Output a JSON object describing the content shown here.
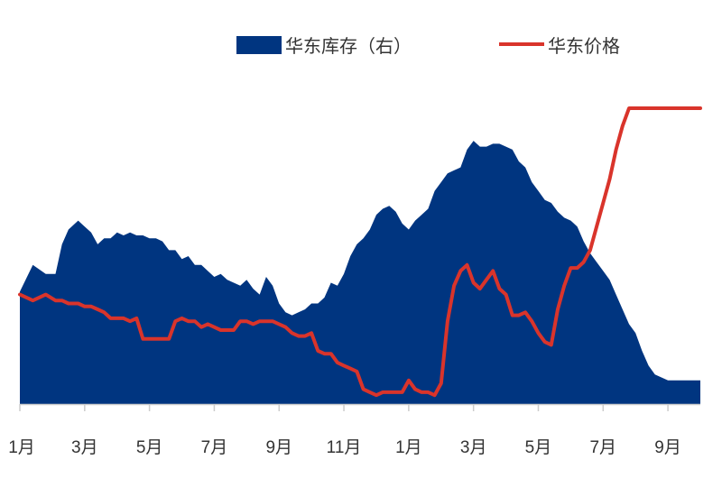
{
  "chart_data": {
    "type": "area+line",
    "title": "",
    "xlabel": "",
    "ylabel": "",
    "grid": false,
    "legend_position": "top-right",
    "x_tick_labels": [
      "1月",
      "3月",
      "5月",
      "7月",
      "9月",
      "11月",
      "1月",
      "3月",
      "5月",
      "7月",
      "9月"
    ],
    "x_range": [
      0,
      21
    ],
    "y_range": [
      0,
      100
    ],
    "series": [
      {
        "name": "华东库存（右）",
        "type": "area",
        "color": "#003580",
        "x": [
          0,
          0.4,
          0.8,
          1.1,
          1.3,
          1.5,
          1.8,
          2.0,
          2.2,
          2.4,
          2.6,
          2.8,
          3.0,
          3.2,
          3.4,
          3.6,
          3.8,
          4.0,
          4.2,
          4.4,
          4.6,
          4.8,
          5.0,
          5.2,
          5.4,
          5.6,
          5.8,
          6.0,
          6.2,
          6.4,
          6.6,
          6.8,
          7.0,
          7.2,
          7.4,
          7.6,
          7.8,
          8.0,
          8.2,
          8.4,
          8.6,
          8.8,
          9.0,
          9.2,
          9.4,
          9.6,
          9.8,
          10.0,
          10.2,
          10.4,
          10.6,
          10.8,
          11.0,
          11.2,
          11.4,
          11.6,
          11.8,
          12.0,
          12.2,
          12.4,
          12.6,
          12.8,
          13.0,
          13.2,
          13.4,
          13.6,
          13.8,
          14.0,
          14.2,
          14.4,
          14.6,
          14.8,
          15.0,
          15.2,
          15.4,
          15.6,
          15.8,
          16.0,
          16.2,
          16.4,
          16.6,
          16.8,
          17.0,
          17.2,
          17.4,
          17.6,
          17.8,
          18.0,
          18.2,
          18.4,
          18.6,
          18.8,
          19.0,
          19.2,
          19.4,
          19.6,
          19.8,
          20.0,
          20.2,
          20.4,
          20.6,
          20.8,
          21.0
        ],
        "values": [
          38,
          47,
          44,
          44,
          54,
          59,
          62,
          60,
          58,
          54,
          56,
          56,
          58,
          57,
          58,
          57,
          57,
          56,
          56,
          55,
          52,
          52,
          49,
          50,
          47,
          47,
          45,
          43,
          44,
          42,
          41,
          40,
          42,
          39,
          37,
          43,
          40,
          34,
          31,
          30,
          31,
          32,
          34,
          34,
          36,
          41,
          40,
          44,
          50,
          54,
          56,
          59,
          64,
          66,
          67,
          65,
          61,
          59,
          62,
          64,
          66,
          72,
          75,
          78,
          79,
          80,
          86,
          89,
          87,
          87,
          88,
          88,
          87,
          86,
          82,
          80,
          75,
          72,
          69,
          68,
          65,
          63,
          62,
          60,
          55,
          51,
          48,
          45,
          42,
          37,
          32,
          27,
          24,
          18,
          13,
          10,
          9,
          8,
          8,
          8,
          8,
          8,
          8
        ]
      },
      {
        "name": "华东价格",
        "type": "line",
        "color": "#d9342b",
        "x": [
          0,
          0.4,
          0.8,
          1.1,
          1.3,
          1.5,
          1.8,
          2.0,
          2.2,
          2.4,
          2.6,
          2.8,
          3.0,
          3.2,
          3.4,
          3.6,
          3.8,
          4.0,
          4.2,
          4.4,
          4.6,
          4.8,
          5.0,
          5.2,
          5.4,
          5.6,
          5.8,
          6.0,
          6.2,
          6.4,
          6.6,
          6.8,
          7.0,
          7.2,
          7.4,
          7.6,
          7.8,
          8.0,
          8.2,
          8.4,
          8.6,
          8.8,
          9.0,
          9.2,
          9.4,
          9.6,
          9.8,
          10.0,
          10.2,
          10.4,
          10.6,
          10.8,
          11.0,
          11.2,
          11.4,
          11.6,
          11.8,
          12.0,
          12.2,
          12.4,
          12.6,
          12.8,
          13.0,
          13.2,
          13.4,
          13.6,
          13.8,
          14.0,
          14.2,
          14.4,
          14.6,
          14.8,
          15.0,
          15.2,
          15.4,
          15.6,
          15.8,
          16.0,
          16.2,
          16.4,
          16.6,
          16.8,
          17.0,
          17.2,
          17.4,
          17.6,
          17.8,
          18.0,
          18.2,
          18.4,
          18.6,
          18.8,
          19.0,
          19.2,
          19.4,
          19.6,
          19.8,
          20.0,
          20.2,
          20.4,
          20.6,
          20.8,
          21.0
        ],
        "values": [
          37,
          35,
          37,
          35,
          35,
          34,
          34,
          33,
          33,
          32,
          31,
          29,
          29,
          29,
          28,
          29,
          22,
          22,
          22,
          22,
          22,
          28,
          29,
          28,
          28,
          26,
          27,
          26,
          25,
          25,
          25,
          28,
          28,
          27,
          28,
          28,
          28,
          27,
          26,
          24,
          23,
          23,
          24,
          18,
          17,
          17,
          14,
          13,
          12,
          11,
          5,
          4,
          3,
          4,
          4,
          4,
          4,
          8,
          5,
          4,
          4,
          3,
          7,
          28,
          40,
          45,
          47,
          41,
          39,
          42,
          45,
          39,
          37,
          30,
          30,
          31,
          28,
          24,
          21,
          20,
          32,
          40,
          46,
          46,
          48,
          52,
          60,
          68,
          76,
          86,
          94,
          100,
          100,
          100,
          100,
          100,
          100,
          100,
          100,
          100,
          100,
          100,
          100
        ]
      }
    ]
  }
}
